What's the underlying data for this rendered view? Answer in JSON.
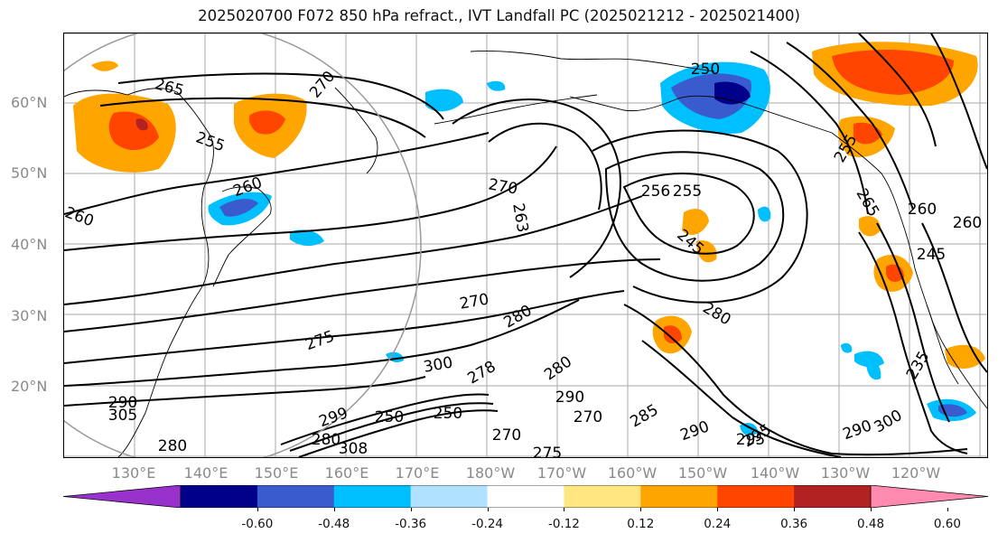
{
  "title": "2025020700 F072 850 hPa refract., IVT Landfall PC (2025021212 - 2025021400)",
  "lat_labels": [
    "60°N",
    "50°N",
    "40°N",
    "30°N",
    "20°N"
  ],
  "lon_labels": [
    "130°E",
    "140°E",
    "150°E",
    "160°E",
    "170°E",
    "180°W",
    "170°W",
    "160°W",
    "150°W",
    "140°W",
    "130°W",
    "120°W"
  ],
  "contour_labels": [
    "265",
    "270",
    "255",
    "260",
    "260",
    "270",
    "263",
    "250",
    "255",
    "256",
    "245",
    "260",
    "265",
    "245",
    "260",
    "270",
    "280",
    "280",
    "280",
    "275",
    "300",
    "278",
    "280",
    "290",
    "270",
    "285",
    "290",
    "295",
    "250",
    "295",
    "290",
    "300",
    "280",
    "250",
    "270",
    "275",
    "305",
    "290",
    "235",
    "255",
    "299",
    "308"
  ],
  "colorbar": {
    "tick_labels": [
      "-0.60",
      "-0.48",
      "-0.36",
      "-0.24",
      "-0.12",
      "0.12",
      "0.24",
      "0.36",
      "0.48",
      "0.60"
    ],
    "colors": [
      "#9932cc",
      "#00008b",
      "#3a5bcd",
      "#00bfff",
      "#b0e2ff",
      "#ffffff",
      "#ffe680",
      "#ffa500",
      "#ff4500",
      "#b22222",
      "#ff8ab0"
    ],
    "min_color": "#9932cc",
    "max_color": "#ff8ab0"
  },
  "theme": {
    "contour_color": "#000000",
    "coast_color": "#000000",
    "grid_color": "#aaaaaa",
    "label_color": "#8a8a8a"
  }
}
